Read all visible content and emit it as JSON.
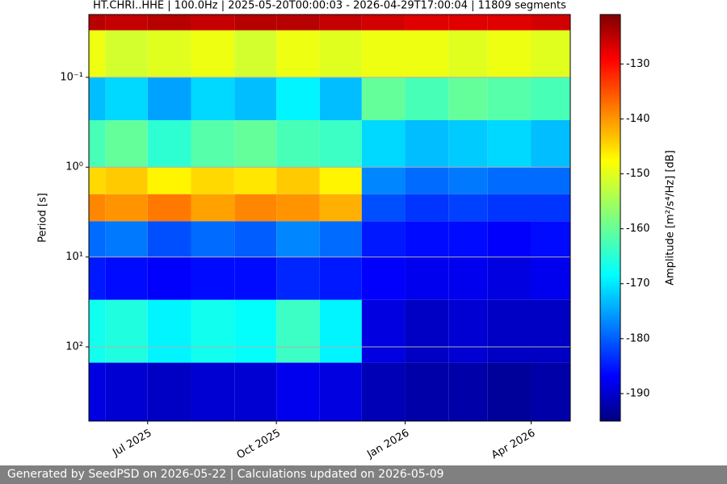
{
  "chart_data": {
    "type": "heatmap",
    "title": "HT.CHRI..HHE | 100.0Hz | 2025-05-20T00:00:03 - 2026-04-29T17:00:04 | 11809 segments",
    "ylabel": "Period [s]",
    "colorbar_label": "Amplitude [m²/s⁴/Hz] [dB]",
    "colormap": "jet",
    "y_log": true,
    "y_inverted": true,
    "grid": true,
    "xlim": [
      "2025-05-20",
      "2026-04-29"
    ],
    "xticks": [
      {
        "value": "2025-07",
        "label": "Jul 2025"
      },
      {
        "value": "2025-10",
        "label": "Oct 2025"
      },
      {
        "value": "2026-01",
        "label": "Jan 2026"
      },
      {
        "value": "2026-04",
        "label": "Apr 2026"
      }
    ],
    "ylim": [
      0.02,
      670
    ],
    "yticks": [
      {
        "value": 0.1,
        "label": "10⁻¹"
      },
      {
        "value": 1,
        "label": "10⁰"
      },
      {
        "value": 10,
        "label": "10¹"
      },
      {
        "value": 100,
        "label": "10²"
      }
    ],
    "clim": [
      -195,
      -121
    ],
    "cticks": [
      -190,
      -180,
      -170,
      -160,
      -150,
      -140,
      -130
    ],
    "x": [
      "2025-05",
      "2025-06",
      "2025-07",
      "2025-08",
      "2025-09",
      "2025-10",
      "2025-11",
      "2025-12",
      "2026-01",
      "2026-02",
      "2026-03",
      "2026-04"
    ],
    "period_bins": [
      0.02,
      0.03,
      0.1,
      0.3,
      1,
      2,
      4,
      10,
      30,
      150,
      670
    ],
    "values": [
      [
        -125,
        -126,
        -125,
        -126,
        -125,
        -125,
        -126,
        -127,
        -128,
        -128,
        -128,
        -127
      ],
      [
        -150,
        -152,
        -151,
        -150,
        -152,
        -150,
        -151,
        -150,
        -150,
        -151,
        -150,
        -151
      ],
      [
        -172,
        -170,
        -174,
        -170,
        -172,
        -168,
        -172,
        -160,
        -162,
        -160,
        -161,
        -162
      ],
      [
        -162,
        -160,
        -164,
        -161,
        -160,
        -162,
        -163,
        -170,
        -172,
        -171,
        -170,
        -172
      ],
      [
        -146,
        -145,
        -148,
        -146,
        -147,
        -145,
        -148,
        -176,
        -178,
        -177,
        -178,
        -178
      ],
      [
        -140,
        -141,
        -139,
        -142,
        -140,
        -141,
        -143,
        -180,
        -182,
        -181,
        -182,
        -182
      ],
      [
        -178,
        -177,
        -180,
        -178,
        -179,
        -176,
        -178,
        -184,
        -185,
        -185,
        -186,
        -185
      ],
      [
        -184,
        -185,
        -186,
        -185,
        -185,
        -183,
        -184,
        -186,
        -187,
        -187,
        -188,
        -187
      ],
      [
        -166,
        -165,
        -168,
        -166,
        -167,
        -163,
        -168,
        -188,
        -190,
        -189,
        -190,
        -190
      ],
      [
        -188,
        -189,
        -190,
        -189,
        -189,
        -187,
        -188,
        -191,
        -192,
        -192,
        -193,
        -192
      ]
    ]
  },
  "footer": "Generated by SeedPSD on 2026-05-22 | Calculations updated on 2026-05-09"
}
